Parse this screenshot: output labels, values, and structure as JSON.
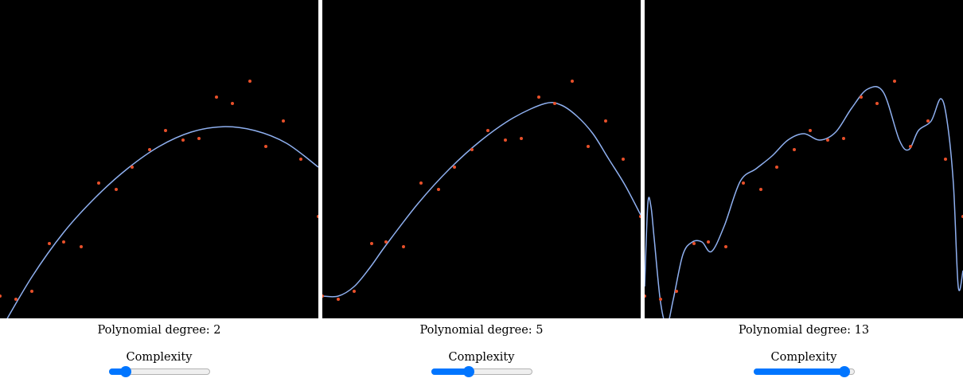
{
  "panels": [
    {
      "degree_text": "Polynomial degree: 2",
      "slider_label": "Complexity",
      "slider_value": 0.12
    },
    {
      "degree_text": "Polynomial degree: 5",
      "slider_label": "Complexity",
      "slider_value": 0.35
    },
    {
      "degree_text": "Polynomial degree: 13",
      "slider_label": "Complexity",
      "slider_value": 0.95
    }
  ],
  "colors": {
    "point": "#e8502a",
    "curve": "#8fb0f0",
    "background": "#000000",
    "slider_accent": "#0075ff"
  },
  "chart_data": [
    {
      "type": "scatter",
      "degree": 2,
      "xlim": [
        0,
        1
      ],
      "ylim": [
        0,
        1
      ],
      "points_x": [
        0.0,
        0.05,
        0.1,
        0.155,
        0.2,
        0.255,
        0.31,
        0.365,
        0.415,
        0.47,
        0.52,
        0.575,
        0.625,
        0.68,
        0.73,
        0.785,
        0.835,
        0.89,
        0.945,
        1.0
      ],
      "points_y": [
        0.07,
        0.06,
        0.085,
        0.235,
        0.24,
        0.225,
        0.425,
        0.405,
        0.475,
        0.53,
        0.59,
        0.56,
        0.565,
        0.695,
        0.675,
        0.745,
        0.54,
        0.62,
        0.5,
        0.32
      ],
      "curve_x": [
        0.0,
        0.1,
        0.2,
        0.3,
        0.4,
        0.5,
        0.6,
        0.7,
        0.8,
        0.9,
        1.0
      ],
      "curve_y": [
        -0.04,
        0.13,
        0.27,
        0.38,
        0.47,
        0.54,
        0.585,
        0.602,
        0.59,
        0.55,
        0.475
      ]
    },
    {
      "type": "scatter",
      "degree": 5,
      "xlim": [
        0,
        1
      ],
      "ylim": [
        0,
        1
      ],
      "points_x": [
        0.0,
        0.05,
        0.1,
        0.155,
        0.2,
        0.255,
        0.31,
        0.365,
        0.415,
        0.47,
        0.52,
        0.575,
        0.625,
        0.68,
        0.73,
        0.785,
        0.835,
        0.89,
        0.945,
        1.0
      ],
      "points_y": [
        0.07,
        0.06,
        0.085,
        0.235,
        0.24,
        0.225,
        0.425,
        0.405,
        0.475,
        0.53,
        0.59,
        0.56,
        0.565,
        0.695,
        0.675,
        0.745,
        0.54,
        0.62,
        0.5,
        0.32
      ],
      "curve_x": [
        0.0,
        0.05,
        0.1,
        0.15,
        0.2,
        0.3,
        0.4,
        0.5,
        0.6,
        0.7,
        0.75,
        0.8,
        0.85,
        0.9,
        0.95,
        1.0
      ],
      "curve_y": [
        0.07,
        0.07,
        0.1,
        0.16,
        0.23,
        0.36,
        0.47,
        0.56,
        0.63,
        0.675,
        0.67,
        0.635,
        0.58,
        0.5,
        0.42,
        0.325
      ]
    },
    {
      "type": "scatter",
      "degree": 13,
      "xlim": [
        0,
        1
      ],
      "ylim": [
        0,
        1
      ],
      "points_x": [
        0.0,
        0.05,
        0.1,
        0.155,
        0.2,
        0.255,
        0.31,
        0.365,
        0.415,
        0.47,
        0.52,
        0.575,
        0.625,
        0.68,
        0.73,
        0.785,
        0.835,
        0.89,
        0.945,
        1.0
      ],
      "points_y": [
        0.07,
        0.06,
        0.085,
        0.235,
        0.24,
        0.225,
        0.425,
        0.405,
        0.475,
        0.53,
        0.59,
        0.56,
        0.565,
        0.695,
        0.675,
        0.745,
        0.54,
        0.62,
        0.5,
        0.32
      ],
      "curve_x": [
        0.0,
        0.01,
        0.02,
        0.03,
        0.05,
        0.07,
        0.09,
        0.12,
        0.15,
        0.18,
        0.21,
        0.25,
        0.3,
        0.35,
        0.4,
        0.45,
        0.5,
        0.55,
        0.6,
        0.65,
        0.7,
        0.75,
        0.8,
        0.83,
        0.86,
        0.9,
        0.93,
        0.95,
        0.97,
        0.985,
        1.0
      ],
      "curve_y": [
        0.1,
        0.36,
        0.35,
        0.25,
        0.05,
        -0.02,
        0.06,
        0.2,
        0.24,
        0.24,
        0.21,
        0.29,
        0.43,
        0.47,
        0.51,
        0.56,
        0.58,
        0.56,
        0.585,
        0.66,
        0.72,
        0.71,
        0.56,
        0.53,
        0.59,
        0.62,
        0.69,
        0.62,
        0.42,
        0.1,
        0.15
      ]
    }
  ]
}
